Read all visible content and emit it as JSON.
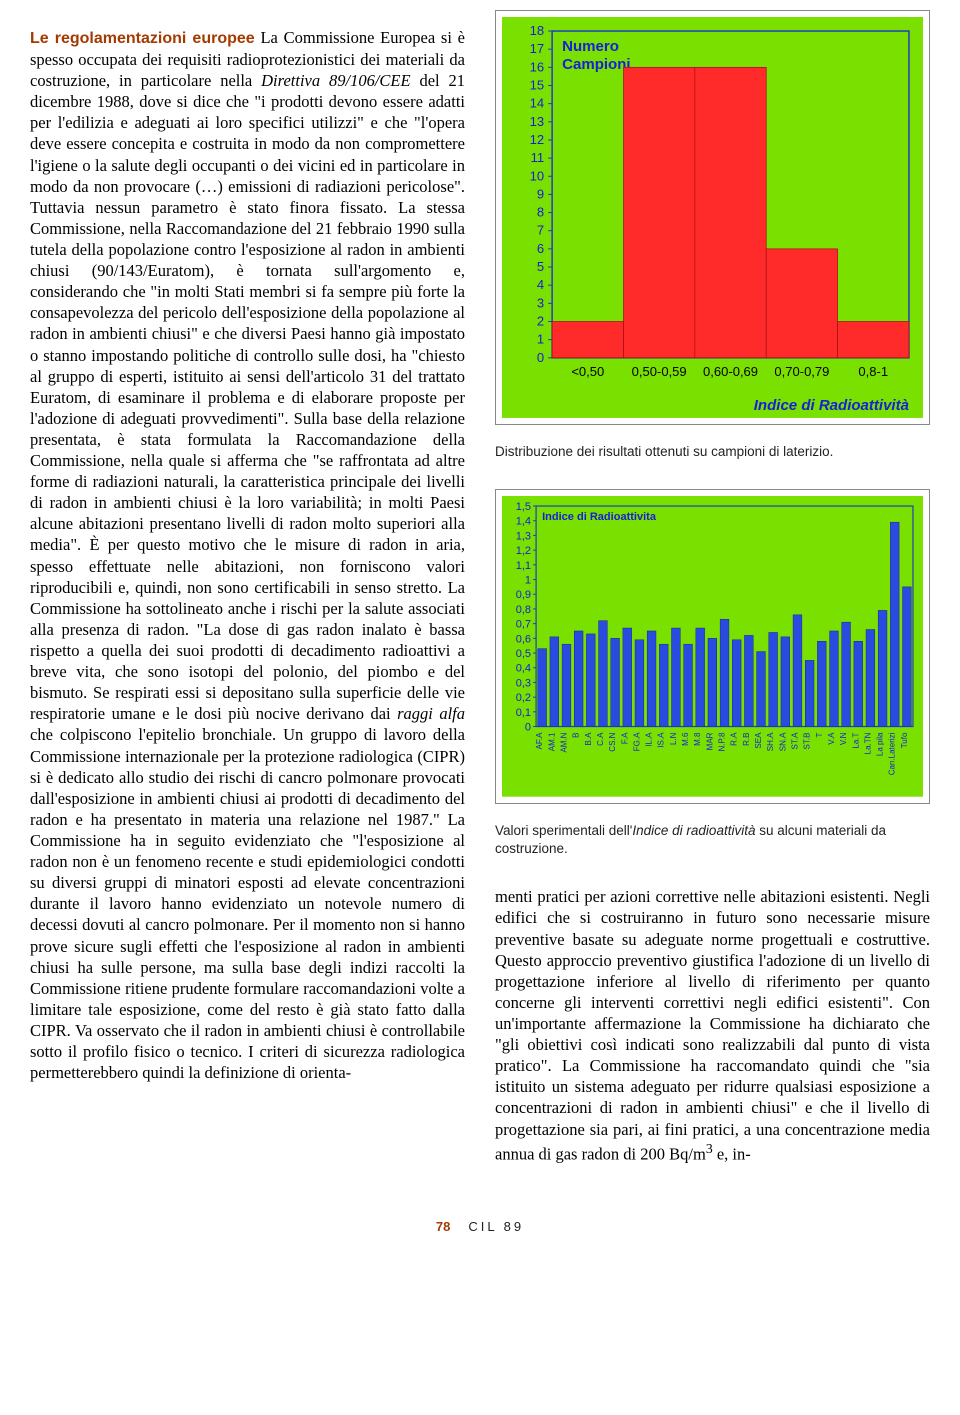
{
  "section_lead": "Le regolamentazioni europee",
  "left_text": "La Commissione Europea si è spesso occupata dei requisiti radioprotezionistici dei materiali da costruzione, in particolare nella <i>Direttiva 89/106/CEE</i> del 21 dicembre 1988, dove si dice che \"i prodotti devono essere adatti per l'edilizia e adeguati ai loro specifici utilizzi\" e che \"l'opera deve essere concepita e costruita in modo da non compromettere l'igiene o la salute degli occupanti o dei vicini ed in particolare in modo da non provocare (…) emissioni di radiazioni pericolose\". Tuttavia nessun parametro è stato finora fissato. La stessa Commissione, nella Raccomandazione del 21 febbraio 1990 sulla tutela della popolazione contro l'esposizione al radon in ambienti chiusi (90/143/Euratom), è tornata sull'argomento e, considerando che \"in molti Stati membri si fa sempre più forte la consapevolezza del pericolo dell'esposizione della popolazione al radon in ambienti chiusi\" e che diversi Paesi hanno già impostato o stanno impostando politiche di controllo sulle dosi, ha \"chiesto al gruppo di esperti, istituito ai sensi dell'articolo 31 del trattato Euratom, di esaminare il problema e di elaborare proposte per l'adozione di adeguati provvedimenti\". Sulla base della relazione presentata, è stata formulata la Raccomandazione della Commissione, nella quale si afferma che \"se raffrontata ad altre forme di radiazioni naturali, la caratteristica principale dei livelli di radon in ambienti chiusi è la loro variabilità; in molti Paesi alcune abitazioni presentano livelli di radon molto superiori alla media\". È per questo motivo che le misure di radon in aria, spesso effettuate nelle abitazioni, non forniscono valori riproducibili e, quindi, non sono certificabili in senso stretto. La Commissione ha sottolineato anche i rischi per la salute associati alla presenza di radon. \"La dose di gas radon inalato è bassa rispetto a quella dei suoi prodotti di decadimento radioattivi a breve vita, che sono isotopi del polonio, del piombo e del bismuto. Se respirati essi si depositano sulla superficie delle vie respiratorie umane e le dosi più nocive derivano dai <i>raggi alfa</i> che colpiscono l'epitelio bronchiale. Un gruppo di lavoro della Commissione internazionale per la protezione radiologica (CIPR) si è dedicato allo studio dei rischi di cancro polmonare provocati dall'esposizione in ambienti chiusi ai prodotti di decadimento del radon e ha presentato in materia una relazione nel 1987.\" La Commissione ha in seguito evidenziato che \"l'esposizione al radon non è un fenomeno recente e studi epidemiologici condotti su diversi gruppi di minatori esposti ad elevate concentrazioni durante il lavoro hanno evidenziato un notevole numero di decessi dovuti al cancro polmonare. Per il momento non si hanno prove sicure sugli effetti che l'esposizione al radon in ambienti chiusi ha sulle persone, ma sulla base degli indizi raccolti la Commissione ritiene prudente formulare raccomandazioni volte a limitare tale esposizione, come del resto è già stato fatto dalla CIPR. Va osservato che il radon in ambienti chiusi è controllabile sotto il profilo fisico o tecnico. I criteri di sicurezza radiologica permetterebbero quindi la definizione di orienta-",
  "right_text": "menti pratici per azioni correttive nelle abitazioni esistenti. Negli edifici che si costruiranno in futuro sono necessarie misure preventive basate su adeguate norme progettuali e costruttive. Questo approccio preventivo giustifica l'adozione di un livello di progettazione inferiore al livello di riferimento per quanto concerne gli interventi correttivi negli edifici esistenti\". Con un'importante affermazione la Commissione ha dichiarato che \"gli obiettivi così indicati sono realizzabili dal punto di vista pratico\". La Commissione ha raccomandato quindi che \"sia istituito un sistema adeguato per ridurre qualsiasi esposizione a concentrazioni di radon in ambienti chiusi\" e che il livello di progettazione sia pari, ai fini pratici, a una concentrazione media annua di gas radon di 200 Bq/m<sup>3</sup> e, in-",
  "chart1": {
    "type": "bar",
    "title_line1": "Numero",
    "title_line2": "Campioni",
    "title_color": "#1620d8",
    "title_fontsize": 15,
    "background_color": "#7ae000",
    "frame_color": "#1f3fbf",
    "axis_color": "#1f3fbf",
    "bar_color": "#ff2a2a",
    "bar_outline": "#a01010",
    "grid": false,
    "ylim": [
      0,
      18
    ],
    "ytick_step": 1,
    "y_font_color": "#1620d8",
    "y_font_size": 13,
    "categories": [
      "<0,50",
      "0,50-0,59",
      "0,60-0,69",
      "0,70-0,79",
      "0,8-1"
    ],
    "x_font_color": "#000",
    "x_font_size": 13,
    "x_label": "Indice di Radioattività",
    "x_label_color": "#1620d8",
    "values": [
      2,
      16,
      16,
      6,
      2
    ],
    "bar_width": 1.0,
    "aspect_w": 420,
    "aspect_h": 400
  },
  "caption1": "Distribuzione dei risultati ottenuti su campioni di laterizio.",
  "chart2": {
    "type": "bar",
    "title": "Indice di Radioattivita",
    "title_color": "#1620d8",
    "title_fontsize": 11,
    "background_color": "#7ae000",
    "frame_color": "#1f3fbf",
    "axis_color": "#1f3fbf",
    "bar_color": "#2a4be0",
    "bar_outline": "#18288f",
    "grid_color": "#ffffff",
    "grid_opacity": 0,
    "ylim": [
      0,
      1.5
    ],
    "ytick_step": 0.1,
    "y_font_color": "#1620d8",
    "y_font_size": 11,
    "categories": [
      "AF.A",
      "AM.1",
      "AM.N",
      "B",
      "B.A",
      "C.A",
      "CS.N",
      "F.A",
      "FG.A",
      "IL.A",
      "IS.A",
      "L.N",
      "M.6",
      "M.8",
      "MAR",
      "N.P.8",
      "R.A",
      "R.B",
      "SEA",
      "SH.A",
      "SN.A",
      "ST.A",
      "ST.B",
      "T",
      "V.A",
      "V.N",
      "La.T",
      "La.TN",
      "La pila",
      "Can.Laterizi",
      "Tufo"
    ],
    "values": [
      0.53,
      0.61,
      0.56,
      0.65,
      0.63,
      0.72,
      0.6,
      0.67,
      0.59,
      0.65,
      0.56,
      0.67,
      0.56,
      0.67,
      0.6,
      0.73,
      0.59,
      0.62,
      0.51,
      0.64,
      0.61,
      0.76,
      0.45,
      0.58,
      0.65,
      0.71,
      0.58,
      0.66,
      0.79,
      1.39,
      0.95
    ],
    "bar_width": 0.72,
    "aspect_w": 420,
    "aspect_h": 300
  },
  "caption2_pre": "Valori sperimentali dell'",
  "caption2_it": "Indice di radioattività",
  "caption2_post": " su alcuni materiali da costruzione.",
  "footer_page": "78",
  "footer_label": "CIL 89"
}
